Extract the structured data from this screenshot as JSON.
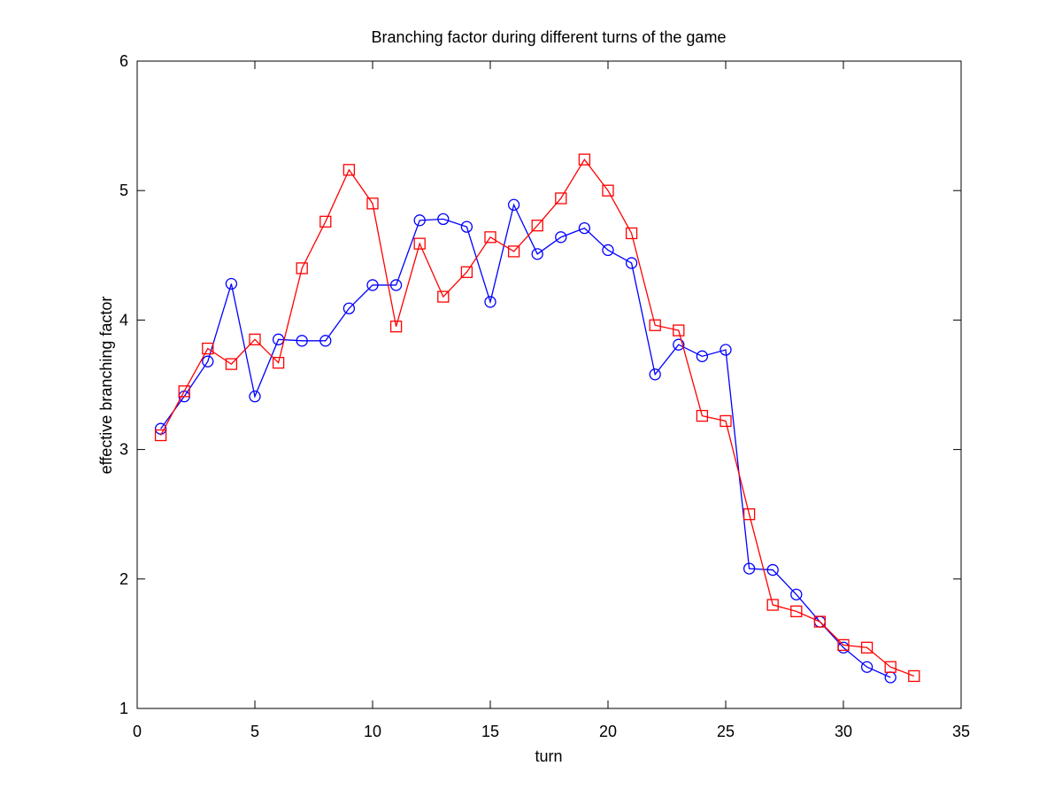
{
  "chart_data": {
    "type": "line",
    "title": "Branching factor during different turns of the game",
    "xlabel": "turn",
    "ylabel": "effective branching factor",
    "xlim": [
      0,
      35
    ],
    "ylim": [
      1,
      6
    ],
    "xticks": [
      0,
      5,
      10,
      15,
      20,
      25,
      30,
      35
    ],
    "yticks": [
      1,
      2,
      3,
      4,
      5,
      6
    ],
    "grid": false,
    "legend": "none",
    "series": [
      {
        "color": "#0000ff",
        "marker": "circle",
        "x": [
          1,
          2,
          3,
          4,
          5,
          6,
          7,
          8,
          9,
          10,
          11,
          12,
          13,
          14,
          15,
          16,
          17,
          18,
          19,
          20,
          21,
          22,
          23,
          24,
          25,
          26,
          27,
          28,
          29,
          30,
          31,
          32
        ],
        "values": [
          3.16,
          3.41,
          3.68,
          4.28,
          3.41,
          3.85,
          3.84,
          3.84,
          4.09,
          4.27,
          4.27,
          4.77,
          4.78,
          4.72,
          4.14,
          4.89,
          4.51,
          4.64,
          4.71,
          4.54,
          4.44,
          3.58,
          3.81,
          3.72,
          3.77,
          2.08,
          2.07,
          1.88,
          1.67,
          1.47,
          1.32,
          1.24
        ]
      },
      {
        "color": "#ff0000",
        "marker": "square",
        "x": [
          1,
          2,
          3,
          4,
          5,
          6,
          7,
          8,
          9,
          10,
          11,
          12,
          13,
          14,
          15,
          16,
          17,
          18,
          19,
          20,
          21,
          22,
          23,
          24,
          25,
          26,
          27,
          28,
          29,
          30,
          31,
          32,
          33
        ],
        "values": [
          3.11,
          3.45,
          3.78,
          3.66,
          3.85,
          3.67,
          4.4,
          4.76,
          5.16,
          4.9,
          3.95,
          4.59,
          4.18,
          4.37,
          4.64,
          4.53,
          4.73,
          4.94,
          5.24,
          5.0,
          4.67,
          3.96,
          3.92,
          3.26,
          3.22,
          2.5,
          1.8,
          1.75,
          1.67,
          1.49,
          1.47,
          1.32,
          1.25
        ]
      }
    ]
  }
}
